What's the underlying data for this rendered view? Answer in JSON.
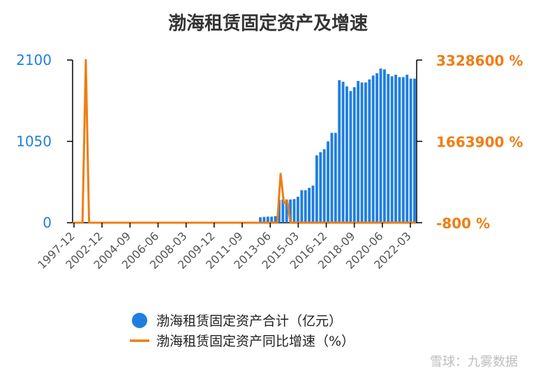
{
  "chart_data": {
    "type": "bar+line",
    "title": "渤海租赁固定资产及增速",
    "x_tick_labels": [
      "1997-12",
      "2002-12",
      "2004-09",
      "2006-06",
      "2008-03",
      "2009-12",
      "2011-09",
      "2013-06",
      "2015-03",
      "2016-12",
      "2018-09",
      "2020-06",
      "2022-03"
    ],
    "left_axis": {
      "ticks": [
        "2100",
        "1050",
        "0"
      ],
      "range": [
        0,
        2100
      ],
      "color": "#1f7fe0"
    },
    "right_axis": {
      "ticks": [
        "3328600 %",
        "1663900 %",
        "-800 %"
      ],
      "range": [
        -800,
        3328600
      ],
      "color": "#ef7d14"
    },
    "series": [
      {
        "name": "渤海租赁固定资产合计（亿元）",
        "type": "bar",
        "color": "#1f7fe0",
        "values": [
          70,
          75,
          78,
          78,
          85,
          295,
          300,
          300,
          300,
          305,
          335,
          420,
          420,
          450,
          480,
          870,
          910,
          950,
          1050,
          1160,
          1160,
          1840,
          1820,
          1760,
          1700,
          1750,
          1830,
          1810,
          1810,
          1850,
          1900,
          1930,
          1990,
          1980,
          1920,
          1890,
          1910,
          1880,
          1880,
          1910,
          1860,
          1860
        ]
      },
      {
        "name": "渤海租赁固定资产同比增速（%）",
        "type": "line",
        "color": "#ef7d14",
        "values": [
          -800,
          -800,
          -800,
          -800,
          3328600,
          -800,
          -800,
          -800,
          -800,
          -800,
          -800,
          -800,
          -800,
          -800,
          -800,
          -800,
          -800,
          -800,
          -800,
          -800,
          -800,
          -800,
          -800,
          -800,
          -800,
          -800,
          -800,
          -800,
          -800,
          -800,
          -800,
          -800,
          -800,
          -800,
          -800,
          -800,
          -800,
          -800,
          -800,
          -800,
          -800,
          -800,
          -800,
          -800,
          -800,
          -800,
          -800,
          -800,
          -800,
          -800,
          -800,
          -800,
          -800,
          -800,
          -800,
          -800,
          -800,
          -800,
          -800,
          -800,
          -800,
          -800,
          -800,
          1000000,
          400000,
          450000,
          -800,
          -800,
          -800,
          -800,
          -800,
          -800,
          -800,
          -800,
          -800,
          -800,
          -800,
          -800,
          -800,
          -800,
          -800,
          -800,
          -800,
          -800,
          -800,
          -800,
          -800,
          -800,
          -800,
          -800,
          -800,
          -800,
          -800,
          -800,
          -800,
          -800,
          -800,
          -800,
          -800,
          -800,
          -800,
          -800,
          -800,
          -800,
          -800
        ]
      }
    ],
    "legend_position": "bottom"
  },
  "watermark": "雪球：九雾数据"
}
